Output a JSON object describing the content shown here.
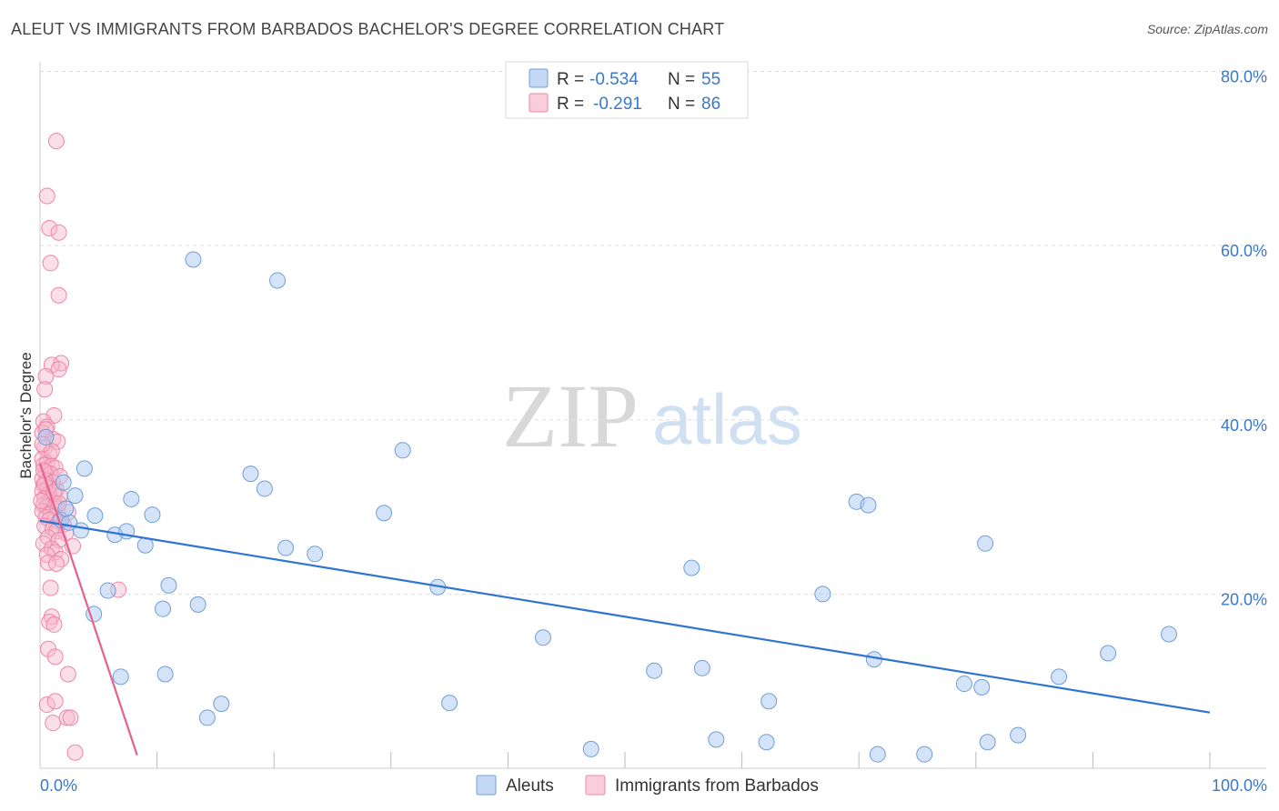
{
  "title": "ALEUT VS IMMIGRANTS FROM BARBADOS BACHELOR'S DEGREE CORRELATION CHART",
  "source": "Source: ZipAtlas.com",
  "watermark": {
    "zip": "ZIP",
    "atlas": "atlas"
  },
  "legend": {
    "rows": [
      {
        "r_label": "R =",
        "r_value": "-0.534",
        "n_label": "N =",
        "n_value": "55"
      },
      {
        "r_label": "R =",
        "r_value": "-0.291",
        "n_label": "N =",
        "n_value": "86"
      }
    ]
  },
  "bottom_legend": [
    "Aleuts",
    "Immigrants from Barbados"
  ],
  "colors": {
    "aleut_fill": "#a9c8ef",
    "aleut_stroke": "#6f9fd8",
    "aleut_line": "#2f74d0",
    "barb_fill": "#f7b8cb",
    "barb_stroke": "#ee86a6",
    "barb_line": "#e8608c",
    "axis_text": "#3a78c9",
    "grid": "#dddddd"
  },
  "chart_data": {
    "type": "scatter",
    "title": "ALEUT VS IMMIGRANTS FROM BARBADOS BACHELOR'S DEGREE CORRELATION CHART",
    "xlabel": "",
    "ylabel": "Bachelor's Degree",
    "xlim": [
      0,
      100
    ],
    "ylim": [
      0,
      80
    ],
    "x_tick_labels": [
      "0.0%",
      "100.0%"
    ],
    "y_ticks": [
      20,
      40,
      60,
      80
    ],
    "y_tick_labels": [
      "20.0%",
      "40.0%",
      "60.0%",
      "80.0%"
    ],
    "series": [
      {
        "name": "Aleuts",
        "R": -0.534,
        "N": 55,
        "trend": {
          "x": [
            0,
            100
          ],
          "y": [
            28.4,
            6.4
          ]
        },
        "points": [
          [
            0.5,
            38
          ],
          [
            3.8,
            34.4
          ],
          [
            2.0,
            32.8
          ],
          [
            3.0,
            31.3
          ],
          [
            4.7,
            29.0
          ],
          [
            1.8,
            28.5
          ],
          [
            3.5,
            27.3
          ],
          [
            6.4,
            26.8
          ],
          [
            7.4,
            27.2
          ],
          [
            7.8,
            30.9
          ],
          [
            9.6,
            29.1
          ],
          [
            9.0,
            25.6
          ],
          [
            5.8,
            20.4
          ],
          [
            4.6,
            17.7
          ],
          [
            11.0,
            21.0
          ],
          [
            10.5,
            18.3
          ],
          [
            13.5,
            18.8
          ],
          [
            6.9,
            10.5
          ],
          [
            10.7,
            10.8
          ],
          [
            14.3,
            5.8
          ],
          [
            15.5,
            7.4
          ],
          [
            13.1,
            58.4
          ],
          [
            20.3,
            56.0
          ],
          [
            18.0,
            33.8
          ],
          [
            19.2,
            32.1
          ],
          [
            21.0,
            25.3
          ],
          [
            23.5,
            24.6
          ],
          [
            29.4,
            29.3
          ],
          [
            31.0,
            36.5
          ],
          [
            34.0,
            20.8
          ],
          [
            35.0,
            7.5
          ],
          [
            43.0,
            15.0
          ],
          [
            47.1,
            2.2
          ],
          [
            52.5,
            11.2
          ],
          [
            55.7,
            23.0
          ],
          [
            56.6,
            11.5
          ],
          [
            57.8,
            3.3
          ],
          [
            62.1,
            3.0
          ],
          [
            62.3,
            7.7
          ],
          [
            66.9,
            20.0
          ],
          [
            69.8,
            30.6
          ],
          [
            70.8,
            30.2
          ],
          [
            71.3,
            12.5
          ],
          [
            71.6,
            1.6
          ],
          [
            75.6,
            1.6
          ],
          [
            79.0,
            9.7
          ],
          [
            80.5,
            9.3
          ],
          [
            80.8,
            25.8
          ],
          [
            81.0,
            3.0
          ],
          [
            83.6,
            3.8
          ],
          [
            87.1,
            10.5
          ],
          [
            91.3,
            13.2
          ],
          [
            96.5,
            15.4
          ],
          [
            2.5,
            28.2
          ],
          [
            2.2,
            29.8
          ]
        ]
      },
      {
        "name": "Immigrants from Barbados",
        "R": -0.291,
        "N": 86,
        "trend": {
          "x": [
            0,
            8.3
          ],
          "y": [
            35.0,
            1.5
          ]
        },
        "points": [
          [
            1.4,
            72.0
          ],
          [
            0.6,
            65.7
          ],
          [
            0.8,
            62.0
          ],
          [
            1.6,
            61.5
          ],
          [
            0.9,
            58.0
          ],
          [
            1.6,
            54.3
          ],
          [
            1.8,
            46.5
          ],
          [
            1.0,
            46.3
          ],
          [
            1.6,
            45.8
          ],
          [
            0.5,
            45.0
          ],
          [
            0.4,
            43.5
          ],
          [
            1.2,
            40.5
          ],
          [
            0.3,
            39.8
          ],
          [
            0.6,
            39.2
          ],
          [
            0.2,
            38.5
          ],
          [
            1.1,
            37.8
          ],
          [
            1.5,
            37.5
          ],
          [
            0.4,
            36.8
          ],
          [
            0.8,
            36.0
          ],
          [
            0.2,
            35.5
          ],
          [
            0.6,
            35.0
          ],
          [
            0.3,
            34.8
          ],
          [
            1.0,
            34.7
          ],
          [
            1.3,
            34.5
          ],
          [
            0.5,
            34.0
          ],
          [
            0.9,
            33.8
          ],
          [
            0.2,
            33.2
          ],
          [
            0.6,
            33.0
          ],
          [
            1.1,
            32.8
          ],
          [
            0.3,
            32.5
          ],
          [
            0.7,
            32.2
          ],
          [
            1.4,
            32.0
          ],
          [
            0.2,
            31.8
          ],
          [
            0.8,
            31.5
          ],
          [
            1.7,
            31.2
          ],
          [
            0.4,
            31.0
          ],
          [
            0.9,
            30.8
          ],
          [
            1.2,
            30.5
          ],
          [
            0.3,
            30.2
          ],
          [
            0.6,
            30.0
          ],
          [
            1.5,
            29.8
          ],
          [
            0.2,
            29.5
          ],
          [
            0.9,
            29.2
          ],
          [
            1.3,
            29.0
          ],
          [
            0.5,
            28.8
          ],
          [
            0.8,
            28.5
          ],
          [
            1.6,
            28.3
          ],
          [
            2.0,
            28.0
          ],
          [
            0.4,
            27.8
          ],
          [
            1.1,
            27.5
          ],
          [
            1.4,
            27.2
          ],
          [
            2.2,
            27.0
          ],
          [
            0.7,
            26.5
          ],
          [
            1.6,
            26.2
          ],
          [
            0.3,
            25.8
          ],
          [
            2.8,
            25.5
          ],
          [
            1.0,
            25.2
          ],
          [
            1.3,
            24.8
          ],
          [
            0.6,
            24.5
          ],
          [
            1.8,
            24.0
          ],
          [
            0.7,
            23.6
          ],
          [
            1.4,
            23.5
          ],
          [
            0.9,
            20.7
          ],
          [
            6.7,
            20.5
          ],
          [
            1.0,
            17.4
          ],
          [
            0.8,
            16.8
          ],
          [
            1.2,
            16.5
          ],
          [
            0.7,
            13.7
          ],
          [
            1.3,
            12.8
          ],
          [
            2.4,
            10.8
          ],
          [
            0.6,
            7.3
          ],
          [
            1.3,
            7.7
          ],
          [
            2.3,
            5.8
          ],
          [
            2.6,
            5.8
          ],
          [
            1.1,
            5.2
          ],
          [
            3.0,
            1.8
          ],
          [
            0.5,
            38.9
          ],
          [
            1.0,
            36.4
          ],
          [
            0.2,
            37.2
          ],
          [
            1.7,
            33.5
          ],
          [
            0.4,
            32.7
          ],
          [
            1.2,
            31.7
          ],
          [
            0.1,
            30.7
          ],
          [
            2.4,
            29.4
          ],
          [
            0.3,
            34.2
          ],
          [
            1.6,
            30.4
          ]
        ]
      }
    ]
  }
}
